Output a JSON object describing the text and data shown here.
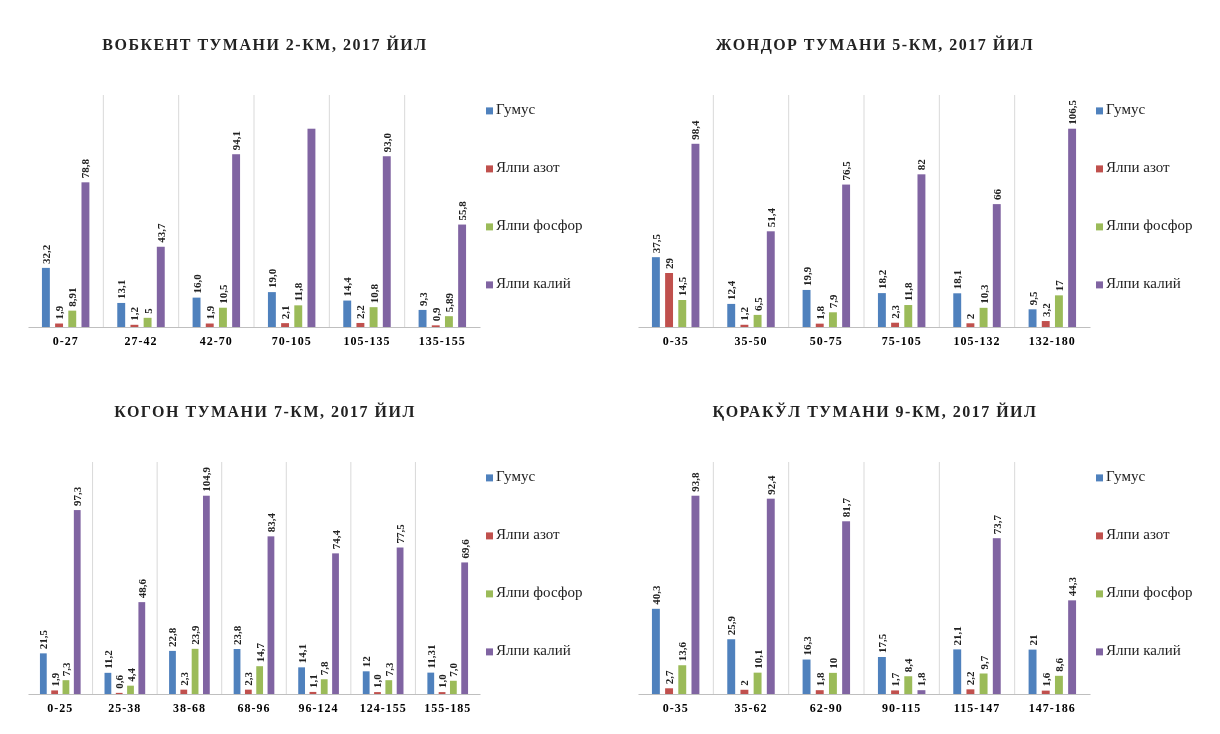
{
  "chart_data": [
    {
      "type": "bar",
      "title": "ВОБКЕНТ ТУМАНИ 2-КМ, 2017 ЙИЛ",
      "categories": [
        "0-27",
        "27-42",
        "42-70",
        "70-105",
        "105-135",
        "135-155"
      ],
      "legend": "right",
      "series": [
        {
          "name": "Гумус",
          "color": "#4f81bd",
          "values": [
            32.2,
            13.1,
            16.0,
            19.0,
            14.4,
            9.3
          ],
          "value_labels": [
            "32,2",
            "13,1",
            "16,0",
            "19,0",
            "14,4",
            "9,3"
          ]
        },
        {
          "name": "Ялпи азот",
          "color": "#c0504d",
          "values": [
            1.9,
            1.2,
            1.9,
            2.1,
            2.2,
            0.9
          ],
          "value_labels": [
            "1,9",
            "1,2",
            "1,9",
            "2,1",
            "2,2",
            "0,9"
          ]
        },
        {
          "name": "Ялпи фосфор",
          "color": "#9bbb59",
          "values": [
            8.91,
            5,
            10.5,
            11.8,
            10.8,
            5.89
          ],
          "value_labels": [
            "8,91",
            "5",
            "10,5",
            "11,8",
            "10,8",
            "5,89"
          ]
        },
        {
          "name": "Ялпи калий",
          "color": "#8064a2",
          "values": [
            78.8,
            43.7,
            94.1,
            108,
            93.0,
            55.8
          ],
          "value_labels": [
            "78,8",
            "43,7",
            "94,1",
            null,
            "93,0",
            "55,8"
          ]
        }
      ]
    },
    {
      "type": "bar",
      "title": "ЖОНДОР ТУМАНИ 5-КМ, 2017 ЙИЛ",
      "categories": [
        "0-35",
        "35-50",
        "50-75",
        "75-105",
        "105-132",
        "132-180"
      ],
      "legend": "right",
      "series": [
        {
          "name": "Гумус",
          "color": "#4f81bd",
          "values": [
            37.5,
            12.4,
            19.9,
            18.2,
            18.1,
            9.5
          ],
          "value_labels": [
            "37,5",
            "12,4",
            "19,9",
            "18,2",
            "18,1",
            "9,5"
          ]
        },
        {
          "name": "Ялпи азот",
          "color": "#c0504d",
          "values": [
            29,
            1.2,
            1.8,
            2.3,
            2,
            3.2
          ],
          "value_labels": [
            "29",
            "1,2",
            "1,8",
            "2,3",
            "2",
            "3,2"
          ]
        },
        {
          "name": "Ялпи фосфор",
          "color": "#9bbb59",
          "values": [
            14.5,
            6.5,
            7.9,
            11.8,
            10.3,
            17
          ],
          "value_labels": [
            "14,5",
            "6,5",
            "7,9",
            "11,8",
            "10,3",
            "17"
          ]
        },
        {
          "name": "Ялпи калий",
          "color": "#8064a2",
          "values": [
            98.4,
            51.4,
            76.5,
            82,
            66,
            106.5
          ],
          "value_labels": [
            "98,4",
            "51,4",
            "76,5",
            "82",
            "66",
            "106,5"
          ]
        }
      ]
    },
    {
      "type": "bar",
      "title": "КОГОН ТУМАНИ 7-КМ, 2017 ЙИЛ",
      "categories": [
        "0-25",
        "25-38",
        "38-68",
        "68-96",
        "96-124",
        "124-155",
        "155-185"
      ],
      "legend": "right",
      "series": [
        {
          "name": "Гумус",
          "color": "#4f81bd",
          "values": [
            21.5,
            11.2,
            22.8,
            23.8,
            14.1,
            12,
            11.31
          ],
          "value_labels": [
            "21,5",
            "11,2",
            "22,8",
            "23,8",
            "14,1",
            "12",
            "11,31"
          ]
        },
        {
          "name": "Ялпи азот",
          "color": "#c0504d",
          "values": [
            1.9,
            0.6,
            2.3,
            2.3,
            1.1,
            1.0,
            1.0
          ],
          "value_labels": [
            "1,9",
            "0,6",
            "2,3",
            "2,3",
            "1,1",
            "1,0",
            "1,0"
          ]
        },
        {
          "name": "Ялпи фосфор",
          "color": "#9bbb59",
          "values": [
            7.3,
            4.4,
            23.9,
            14.7,
            7.8,
            7.3,
            7.0
          ],
          "value_labels": [
            "7,3",
            "4,4",
            "23,9",
            "14,7",
            "7,8",
            "7,3",
            "7,0"
          ]
        },
        {
          "name": "Ялпи калий",
          "color": "#8064a2",
          "values": [
            97.3,
            48.6,
            104.9,
            83.4,
            74.4,
            77.5,
            69.6
          ],
          "value_labels": [
            "97,3",
            "48,6",
            "104,9",
            "83,4",
            "74,4",
            "77,5",
            "69,6"
          ]
        }
      ]
    },
    {
      "type": "bar",
      "title": "ҚОРАКЎЛ ТУМАНИ 9-КМ, 2017 ЙИЛ",
      "categories": [
        "0-35",
        "35-62",
        "62-90",
        "90-115",
        "115-147",
        "147-186"
      ],
      "legend": "right",
      "series": [
        {
          "name": "Гумус",
          "color": "#4f81bd",
          "values": [
            40.3,
            25.9,
            16.3,
            17.5,
            21.1,
            21
          ],
          "value_labels": [
            "40,3",
            "25,9",
            "16,3",
            "17,5",
            "21,1",
            "21"
          ]
        },
        {
          "name": "Ялпи азот",
          "color": "#c0504d",
          "values": [
            2.7,
            2,
            1.8,
            1.7,
            2.2,
            1.6
          ],
          "value_labels": [
            "2,7",
            "2",
            "1,8",
            "1,7",
            "2,2",
            "1,6"
          ]
        },
        {
          "name": "Ялпи фосфор",
          "color": "#9bbb59",
          "values": [
            13.6,
            10.1,
            10,
            8.4,
            9.7,
            8.6
          ],
          "value_labels": [
            "13,6",
            "10,1",
            "10",
            "8,4",
            "9,7",
            "8,6"
          ]
        },
        {
          "name": "Ялпи калий",
          "color": "#8064a2",
          "values": [
            93.8,
            92.4,
            81.7,
            1.8,
            73.7,
            44.3
          ],
          "value_labels": [
            "93,8",
            "92,4",
            "81,7",
            "1,8",
            "73,7",
            "44,3"
          ]
        }
      ]
    }
  ]
}
